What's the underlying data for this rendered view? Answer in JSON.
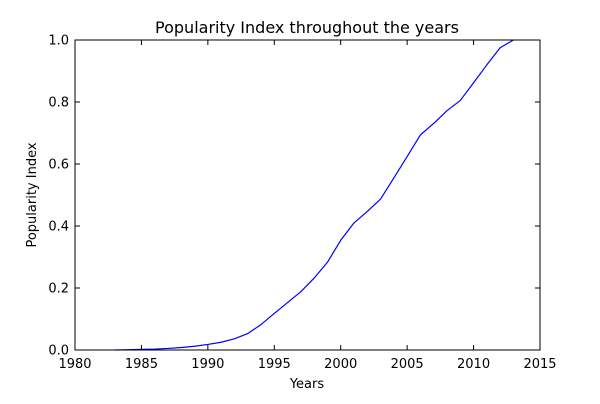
{
  "chart_data": {
    "type": "line",
    "title": "Popularity Index throughout the years",
    "xlabel": "Years",
    "ylabel": "Popularity Index",
    "xlim": [
      1980,
      2015
    ],
    "ylim": [
      0.0,
      1.0
    ],
    "xticks": [
      1980,
      1985,
      1990,
      1995,
      2000,
      2005,
      2010,
      2015
    ],
    "yticks": [
      0.0,
      0.2,
      0.4,
      0.6,
      0.8,
      1.0
    ],
    "xtick_labels": [
      "1980",
      "1985",
      "1990",
      "1995",
      "2000",
      "2005",
      "2010",
      "2015"
    ],
    "ytick_labels": [
      "0.0",
      "0.2",
      "0.4",
      "0.6",
      "0.8",
      "1.0"
    ],
    "grid": false,
    "legend": "none",
    "series": [
      {
        "color": "#0000ff",
        "x": [
          1983,
          1984,
          1985,
          1986,
          1987,
          1988,
          1989,
          1990,
          1991,
          1992,
          1993,
          1994,
          1995,
          1996,
          1997,
          1998,
          1999,
          2000,
          2001,
          2002,
          2003,
          2004,
          2005,
          2006,
          2007,
          2008,
          2009,
          2010,
          2011,
          2012,
          2013
        ],
        "y": [
          0.0,
          0.001,
          0.002,
          0.003,
          0.005,
          0.008,
          0.012,
          0.018,
          0.025,
          0.036,
          0.053,
          0.082,
          0.118,
          0.153,
          0.188,
          0.232,
          0.283,
          0.354,
          0.41,
          0.447,
          0.487,
          0.555,
          0.624,
          0.694,
          0.731,
          0.772,
          0.805,
          0.862,
          0.92,
          0.975,
          1.0
        ]
      }
    ]
  }
}
